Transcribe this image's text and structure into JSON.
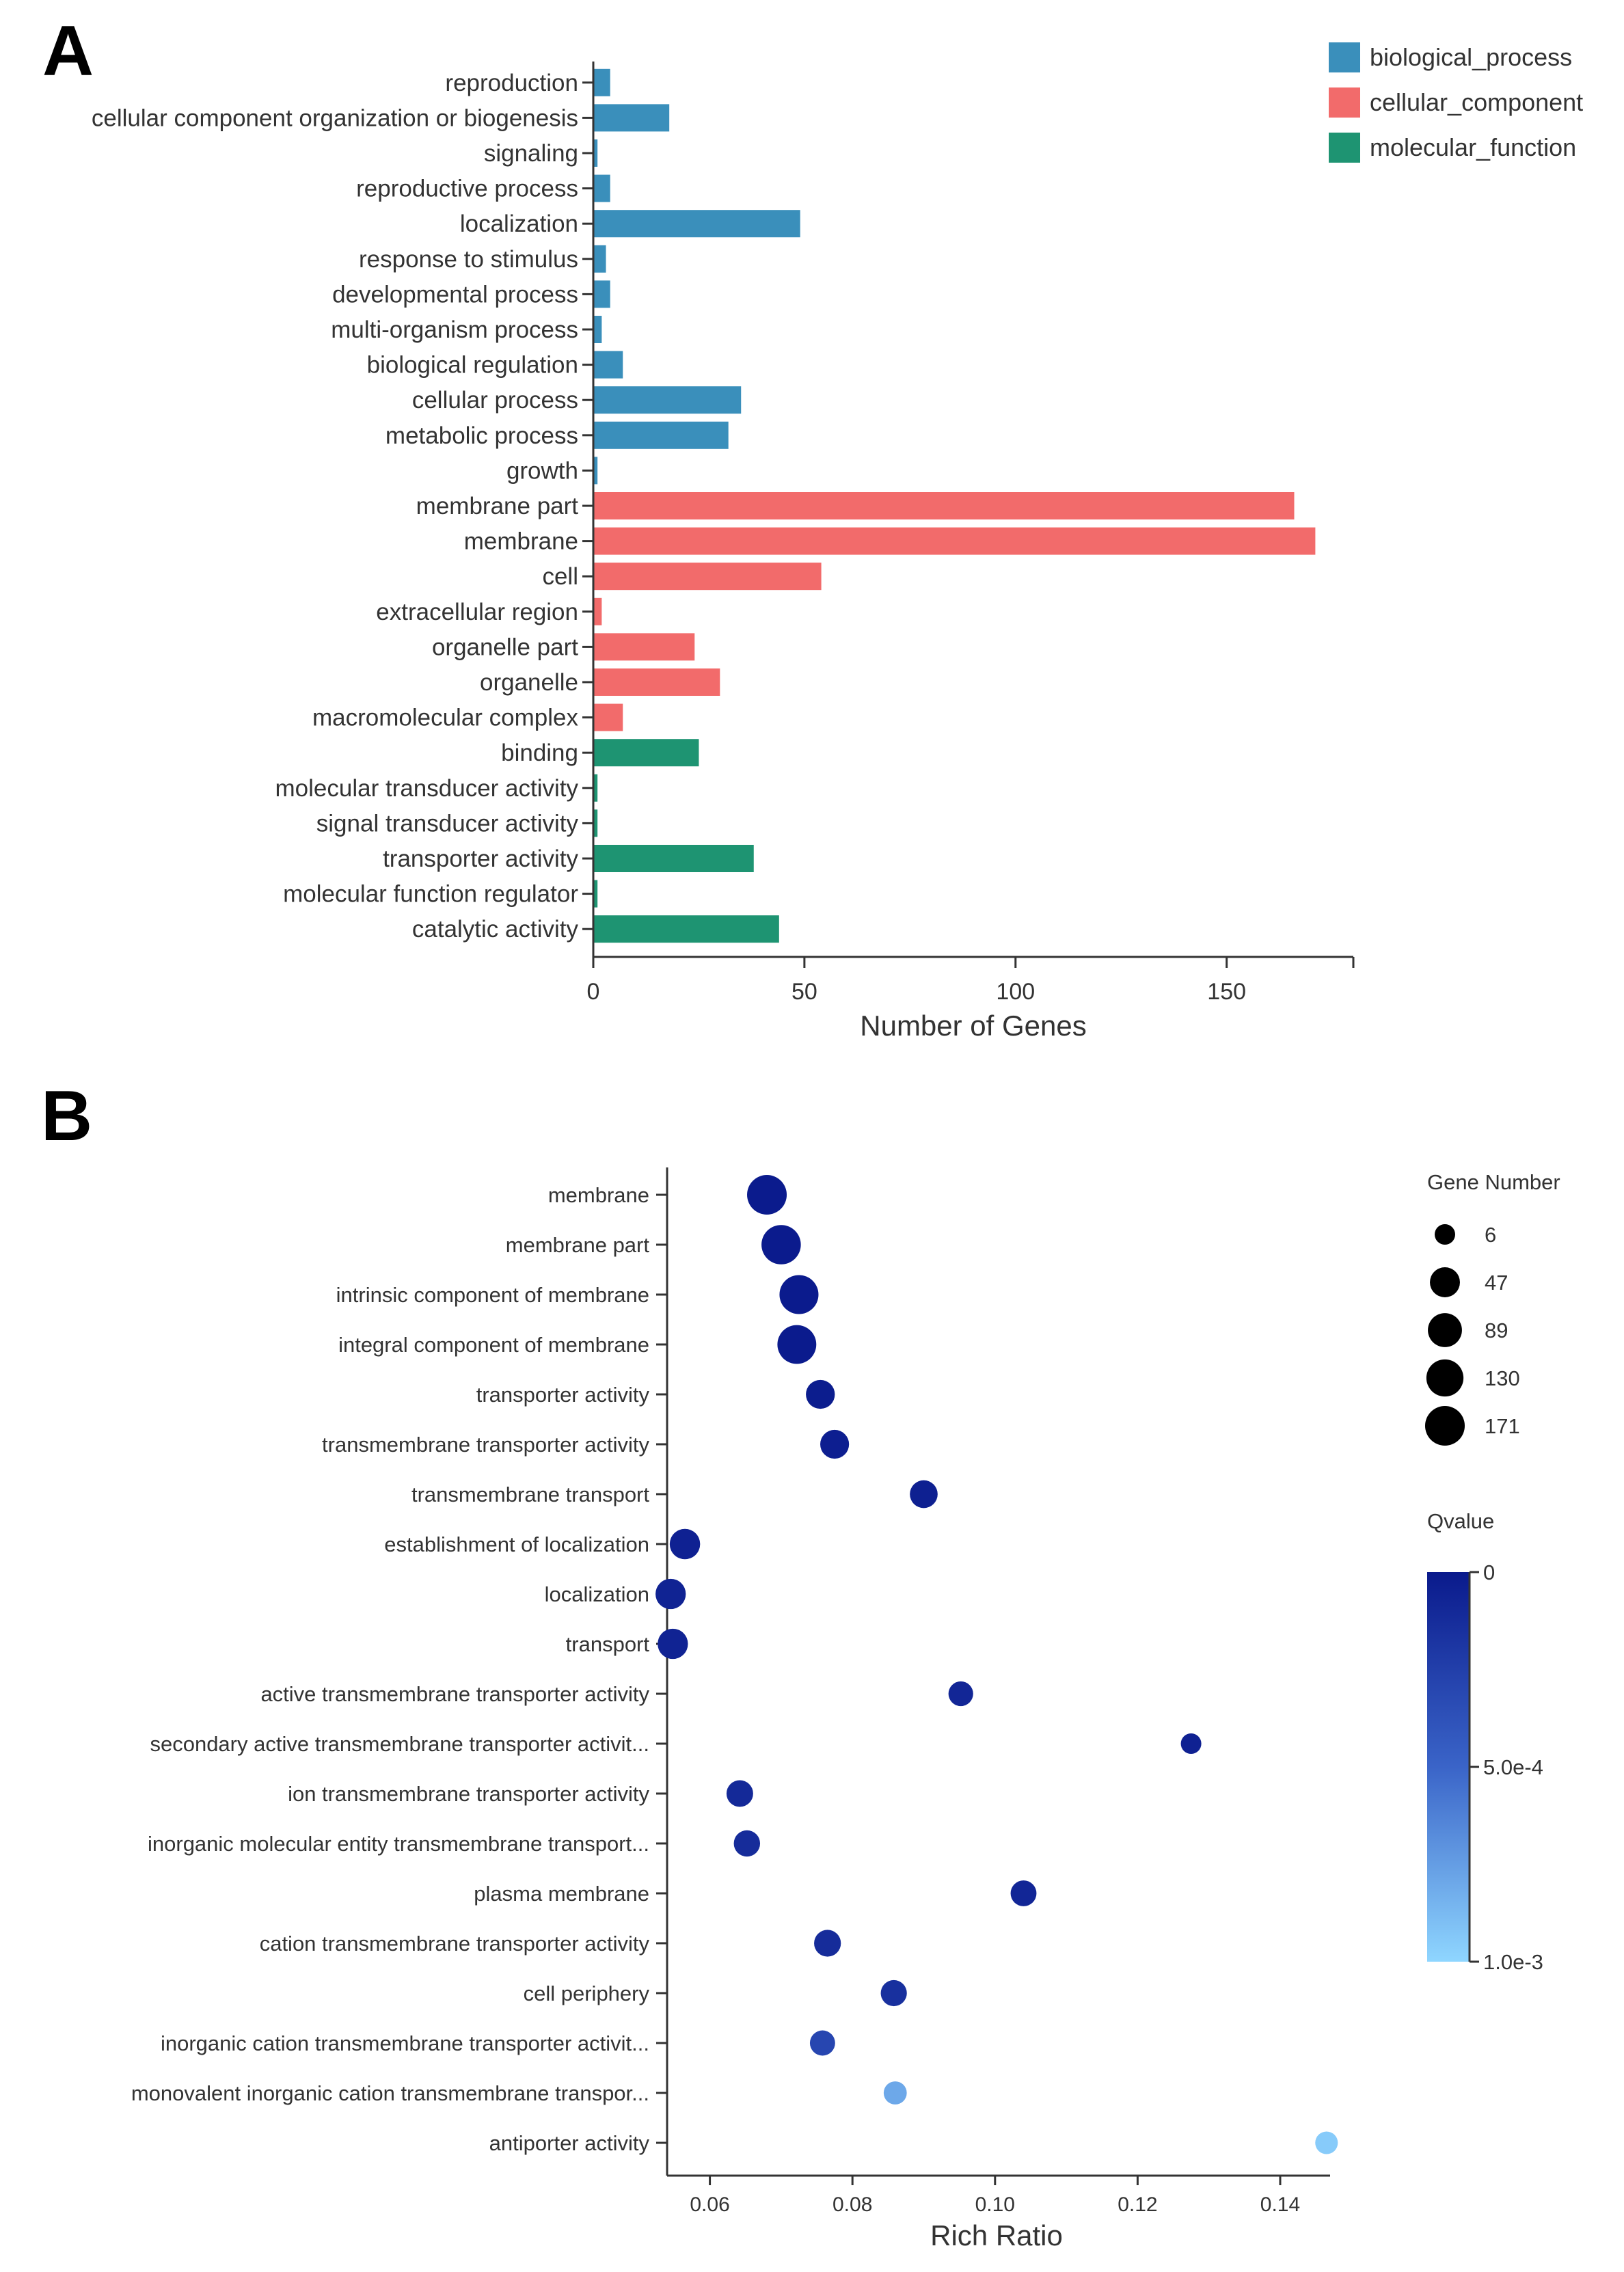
{
  "panels": {
    "a_label": "A",
    "b_label": "B"
  },
  "chart_data": [
    {
      "type": "bar",
      "orientation": "horizontal",
      "categories": [
        "reproduction",
        "cellular component organization or biogenesis",
        "signaling",
        "reproductive process",
        "localization",
        "response to stimulus",
        "developmental process",
        "multi-organism process",
        "biological regulation",
        "cellular process",
        "metabolic process",
        "growth",
        "membrane part",
        "membrane",
        "cell",
        "extracellular region",
        "organelle part",
        "organelle",
        "macromolecular complex",
        "binding",
        "molecular transducer activity",
        "signal transducer activity",
        "transporter activity",
        "molecular function regulator",
        "catalytic activity"
      ],
      "values": [
        4,
        18,
        1,
        4,
        49,
        3,
        4,
        2,
        7,
        35,
        32,
        1,
        166,
        171,
        54,
        2,
        24,
        30,
        7,
        25,
        1,
        1,
        38,
        1,
        44
      ],
      "groups": [
        "biological_process",
        "biological_process",
        "biological_process",
        "biological_process",
        "biological_process",
        "biological_process",
        "biological_process",
        "biological_process",
        "biological_process",
        "biological_process",
        "biological_process",
        "biological_process",
        "cellular_component",
        "cellular_component",
        "cellular_component",
        "cellular_component",
        "cellular_component",
        "cellular_component",
        "cellular_component",
        "molecular_function",
        "molecular_function",
        "molecular_function",
        "molecular_function",
        "molecular_function",
        "molecular_function"
      ],
      "legend": [
        {
          "name": "biological_process",
          "color": "#3a8fbb"
        },
        {
          "name": "cellular_component",
          "color": "#f26b6b"
        },
        {
          "name": "molecular_function",
          "color": "#1e9472"
        }
      ],
      "xticks": [
        0,
        50,
        100,
        150
      ],
      "xlim": [
        0,
        180
      ],
      "xlabel": "Number of Genes",
      "legend_position": "top-right"
    },
    {
      "type": "scatter",
      "categories": [
        "membrane",
        "membrane part",
        "intrinsic component of membrane",
        "integral component of membrane",
        "transporter activity",
        "transmembrane transporter activity",
        "transmembrane transport",
        "establishment of localization",
        "localization",
        "transport",
        "active transmembrane transporter activity",
        "secondary active transmembrane transporter activit...",
        "ion transmembrane transporter activity",
        "inorganic molecular entity transmembrane transport...",
        "plasma membrane",
        "cation transmembrane transporter activity",
        "cell periphery",
        "inorganic cation transmembrane transporter activit...",
        "monovalent inorganic cation transmembrane transpor...",
        "antiporter activity"
      ],
      "rich_ratio": [
        0.068,
        0.07,
        0.0725,
        0.0722,
        0.0755,
        0.0775,
        0.09,
        0.0565,
        0.0545,
        0.0548,
        0.0952,
        0.1275,
        0.0642,
        0.0652,
        0.104,
        0.0765,
        0.0858,
        0.0758,
        0.086,
        0.1465
      ],
      "gene_number": [
        171,
        166,
        160,
        158,
        38,
        37,
        30,
        50,
        49,
        49,
        14,
        6,
        23,
        21,
        19,
        24,
        20,
        16,
        9,
        8
      ],
      "qvalue": [
        1e-05,
        1e-05,
        1e-05,
        1e-05,
        2e-05,
        3e-05,
        4e-05,
        5e-05,
        6e-05,
        6e-05,
        8e-05,
        5e-05,
        0.0001,
        0.00012,
        8e-05,
        0.00012,
        0.00015,
        0.0003,
        0.0008,
        0.00095
      ],
      "xticks": [
        0.06,
        0.08,
        0.1,
        0.12,
        0.14
      ],
      "xtick_labels": [
        "0.06",
        "0.08",
        "0.10",
        "0.12",
        "0.14"
      ],
      "xlim": [
        0.054,
        0.147
      ],
      "xlabel": "Rich Ratio",
      "size_legend": {
        "title": "Gene Number",
        "values": [
          6,
          47,
          89,
          130,
          171
        ],
        "labels": [
          "6",
          "47",
          "89",
          "130",
          "171"
        ]
      },
      "color_legend": {
        "title": "Qvalue",
        "min": 0,
        "max": 0.001,
        "tick_labels": [
          "0",
          "5.0e-4",
          "1.0e-3"
        ],
        "low_color": "#0a1a8c",
        "high_color": "#8fd6ff"
      }
    }
  ]
}
